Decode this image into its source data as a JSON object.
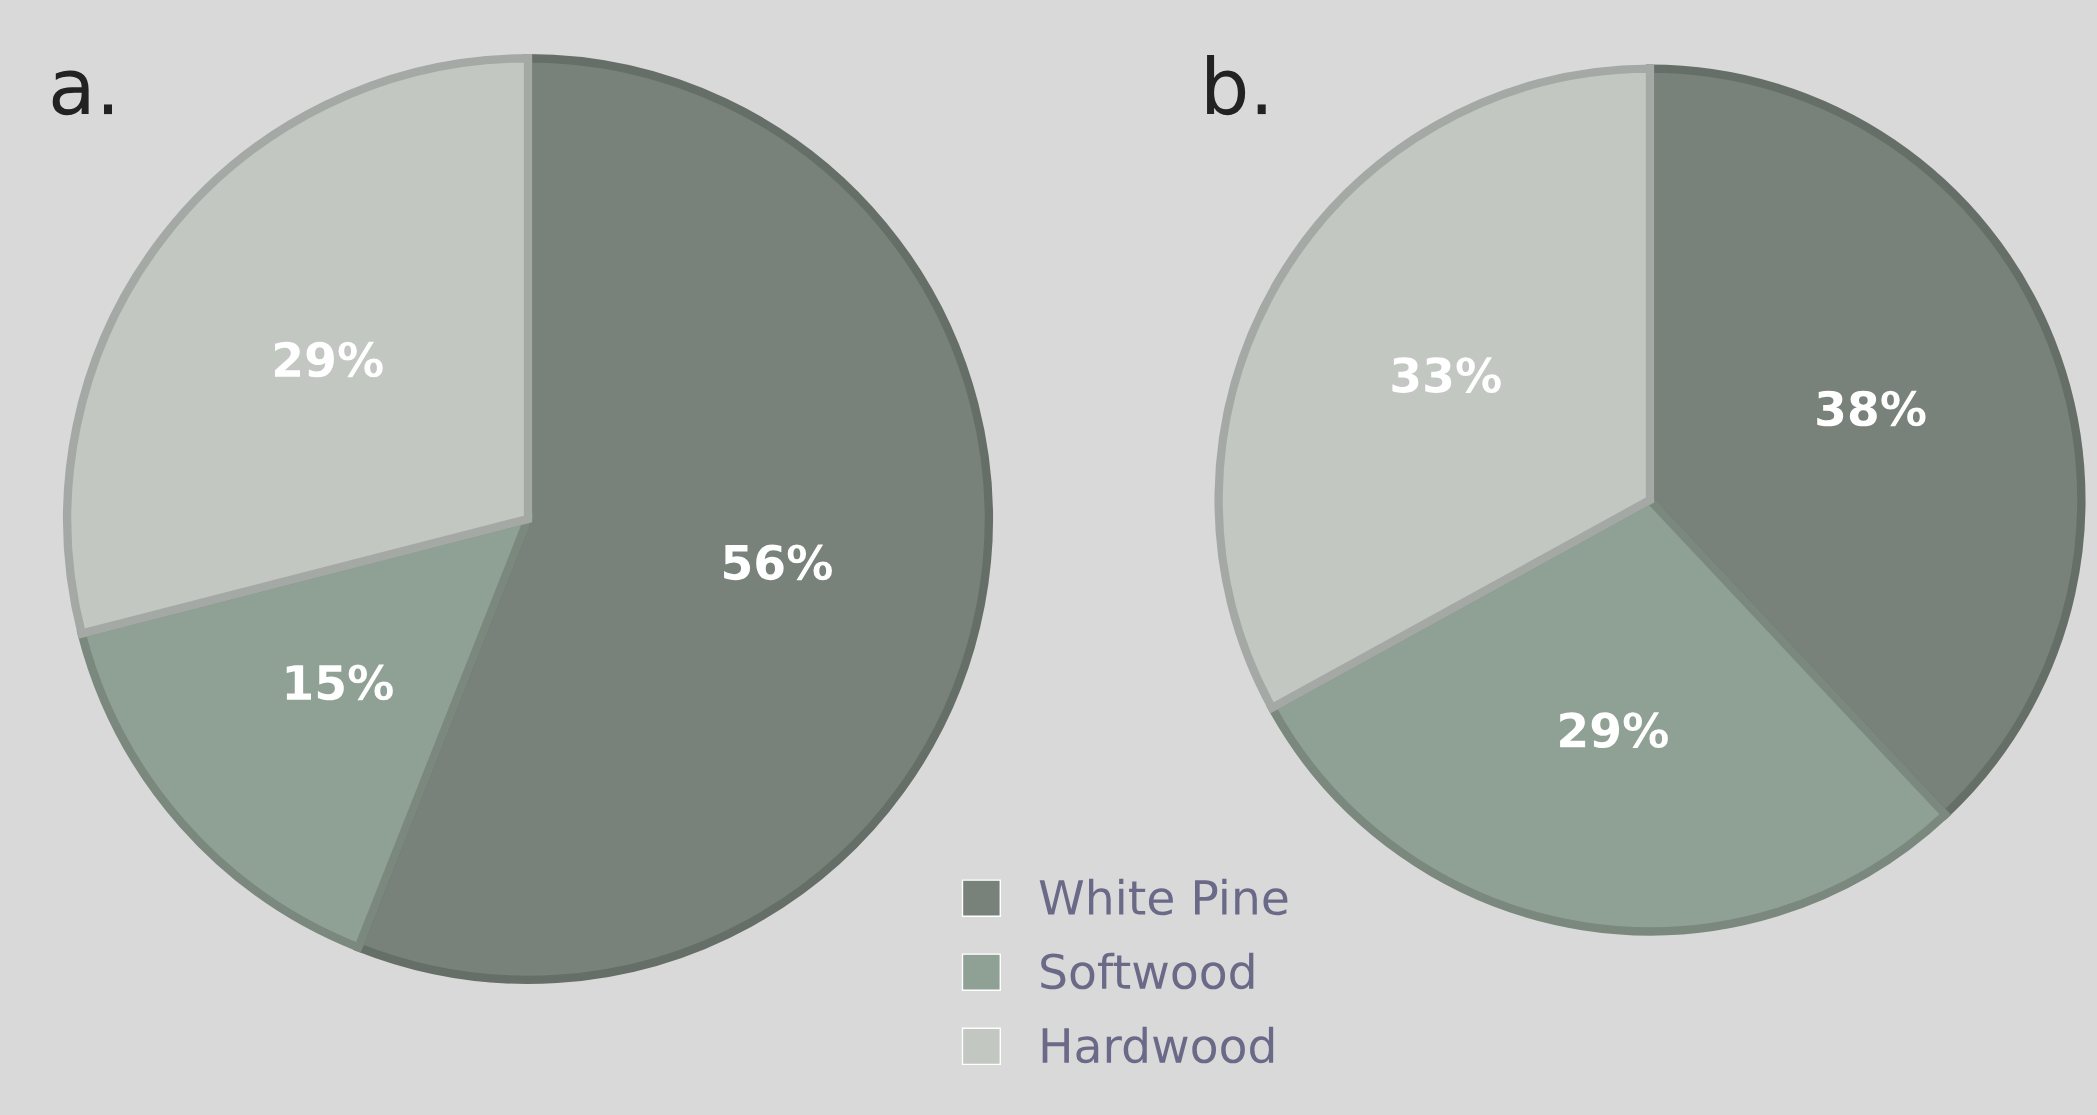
{
  "chart_data": [
    {
      "type": "pie",
      "title": "a.",
      "categories": [
        "White Pine",
        "Softwood",
        "Hardwood"
      ],
      "values": [
        56,
        15,
        29
      ],
      "value_labels": [
        "56%",
        "15%",
        "29%"
      ],
      "colors": [
        "#78827a",
        "#8fa094",
        "#c2c7c2"
      ],
      "legend": "bottom right"
    },
    {
      "type": "pie",
      "title": "b.",
      "categories": [
        null,
        null,
        null
      ],
      "values": [
        38,
        29,
        33
      ],
      "value_labels": [
        "38%",
        "29%",
        "33%"
      ],
      "colors": [
        "#78827a",
        "#8fa094",
        "#c2c7c2"
      ]
    }
  ]
}
